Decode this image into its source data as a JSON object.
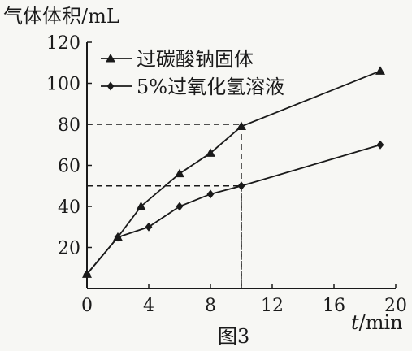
{
  "chart_data": {
    "type": "line",
    "ylabel": "气体体积/mL",
    "xlabel_var": "t",
    "xlabel_unit": "/min",
    "caption": "图3",
    "xlim": [
      0,
      20
    ],
    "ylim": [
      0,
      120
    ],
    "x_ticks": [
      0,
      4,
      8,
      12,
      16,
      20
    ],
    "y_ticks": [
      20,
      40,
      60,
      80,
      100,
      120
    ],
    "legend_position": "top-left",
    "grid": false,
    "series": [
      {
        "name": "过碳酸钠固体",
        "marker": "triangle",
        "x": [
          0,
          2,
          3.5,
          6,
          8,
          10,
          19
        ],
        "y": [
          7,
          25,
          40,
          56,
          66,
          79,
          106
        ]
      },
      {
        "name": "5%过氧化氢溶液",
        "marker": "diamond",
        "x": [
          0,
          2,
          4,
          6,
          8,
          10,
          19
        ],
        "y": [
          7,
          25,
          30,
          40,
          46,
          50,
          70
        ]
      }
    ],
    "reference_lines": [
      {
        "x": 10,
        "y": 80
      },
      {
        "x": 10,
        "y": 50
      }
    ],
    "colors": {
      "ink": "#1a1a1a",
      "background": "#f7f7f4"
    }
  }
}
